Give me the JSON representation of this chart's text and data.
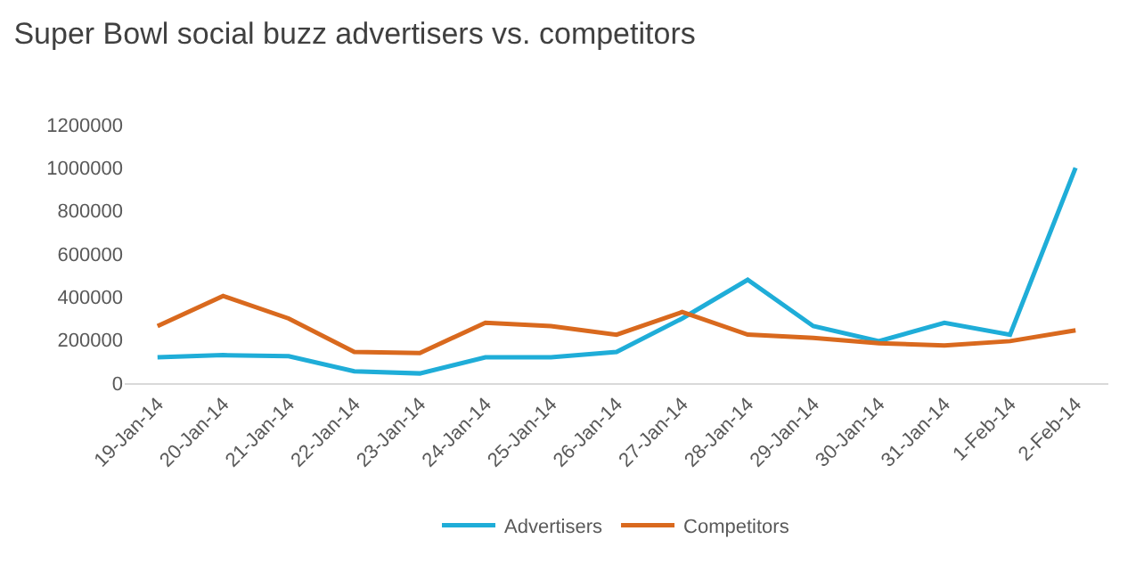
{
  "chart_data": {
    "type": "line",
    "title": "Super Bowl social buzz advertisers vs. competitors",
    "categories": [
      "19-Jan-14",
      "20-Jan-14",
      "21-Jan-14",
      "22-Jan-14",
      "23-Jan-14",
      "24-Jan-14",
      "25-Jan-14",
      "26-Jan-14",
      "27-Jan-14",
      "28-Jan-14",
      "29-Jan-14",
      "30-Jan-14",
      "31-Jan-14",
      "1-Feb-14",
      "2-Feb-14"
    ],
    "series": [
      {
        "name": "Advertisers",
        "color": "#1fadd8",
        "values": [
          120000,
          130000,
          125000,
          55000,
          45000,
          120000,
          120000,
          145000,
          300000,
          480000,
          265000,
          195000,
          280000,
          225000,
          1000000
        ]
      },
      {
        "name": "Competitors",
        "color": "#d9691e",
        "values": [
          265000,
          405000,
          300000,
          145000,
          140000,
          280000,
          265000,
          225000,
          330000,
          225000,
          210000,
          185000,
          175000,
          195000,
          245000
        ]
      }
    ],
    "ylim": [
      0,
      1200000
    ],
    "yticks": [
      0,
      200000,
      400000,
      600000,
      800000,
      1000000,
      1200000
    ],
    "grid": false,
    "legend": "bottom",
    "marker": "none",
    "line_style": "solid"
  }
}
